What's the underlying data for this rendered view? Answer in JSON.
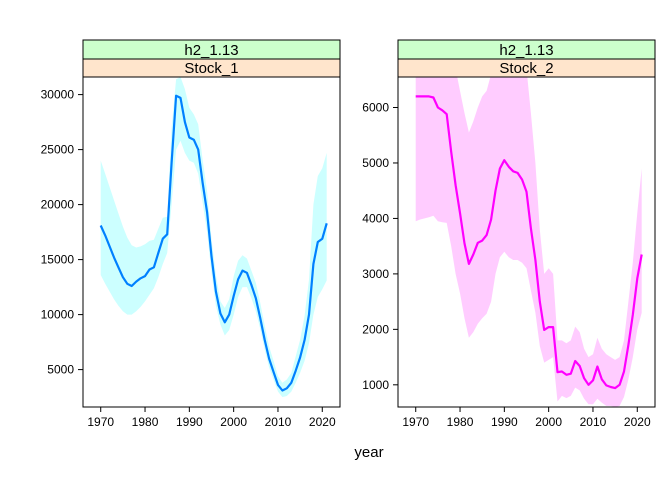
{
  "xlabel": "year",
  "colors": {
    "strip_top": "#ccffcc",
    "strip_bottom": "#ffe5cc",
    "stock1_line": "#0080ff",
    "stock1_band": "#ccffff",
    "stock2_line": "#ff00ff",
    "stock2_band": "#ffccff"
  },
  "chart_data": [
    {
      "type": "area",
      "strip_top": "h2_1.13",
      "strip_bottom": "Stock_1",
      "xlim": [
        1966,
        2024
      ],
      "ylim": [
        1600,
        31600
      ],
      "x_ticks": [
        1970,
        1980,
        1990,
        2000,
        2010,
        2020
      ],
      "y_ticks": [
        5000,
        10000,
        15000,
        20000,
        25000,
        30000
      ],
      "x": [
        1970,
        1971,
        1972,
        1973,
        1974,
        1975,
        1976,
        1977,
        1978,
        1979,
        1980,
        1981,
        1982,
        1983,
        1984,
        1985,
        1986,
        1987,
        1988,
        1989,
        1990,
        1991,
        1992,
        1993,
        1994,
        1995,
        1996,
        1997,
        1998,
        1999,
        2000,
        2001,
        2002,
        2003,
        2004,
        2005,
        2006,
        2007,
        2008,
        2009,
        2010,
        2011,
        2012,
        2013,
        2014,
        2015,
        2016,
        2017,
        2018,
        2019,
        2020,
        2021
      ],
      "series": [
        {
          "name": "estimate",
          "values": [
            18100,
            17200,
            16200,
            15200,
            14300,
            13400,
            12800,
            12600,
            13000,
            13300,
            13500,
            14100,
            14300,
            15600,
            16900,
            17300,
            23800,
            29900,
            29700,
            27500,
            26100,
            25900,
            25000,
            22000,
            19300,
            15300,
            12100,
            10100,
            9300,
            10000,
            11700,
            13200,
            14000,
            13800,
            12700,
            11500,
            9700,
            7700,
            6000,
            4800,
            3600,
            3100,
            3300,
            3800,
            4900,
            6100,
            7700,
            10000,
            14600,
            16600,
            16900,
            18300
          ]
        },
        {
          "name": "lower",
          "values": [
            13600,
            12800,
            12100,
            11400,
            10800,
            10300,
            10000,
            10000,
            10300,
            10700,
            11200,
            11800,
            12400,
            13400,
            14600,
            15600,
            20000,
            25000,
            25800,
            24700,
            24000,
            23800,
            22800,
            20200,
            17500,
            13800,
            10800,
            9100,
            8100,
            8600,
            10000,
            11600,
            12500,
            12500,
            11500,
            10300,
            8700,
            6800,
            5200,
            4100,
            3000,
            2500,
            2600,
            3000,
            3800,
            4700,
            5800,
            7400,
            10000,
            11600,
            12300,
            13100
          ]
        },
        {
          "name": "upper",
          "values": [
            24000,
            22800,
            21600,
            20400,
            19200,
            18000,
            17000,
            16300,
            16100,
            16200,
            16400,
            16700,
            16800,
            17800,
            18800,
            18900,
            27000,
            31400,
            31600,
            30500,
            28800,
            28200,
            27300,
            24100,
            21200,
            16900,
            13600,
            11200,
            10600,
            11400,
            13500,
            14900,
            15400,
            15100,
            14000,
            12900,
            11100,
            9000,
            7100,
            5800,
            4400,
            3800,
            4100,
            4700,
            6200,
            7700,
            9900,
            13200,
            20000,
            22600,
            23300,
            24700
          ]
        }
      ]
    },
    {
      "type": "area",
      "strip_top": "h2_1.13",
      "strip_bottom": "Stock_2",
      "xlim": [
        1966,
        2024
      ],
      "ylim": [
        600,
        6550
      ],
      "x_ticks": [
        1970,
        1980,
        1990,
        2000,
        2010,
        2020
      ],
      "y_ticks": [
        1000,
        2000,
        3000,
        4000,
        5000,
        6000
      ],
      "x": [
        1970,
        1971,
        1972,
        1973,
        1974,
        1975,
        1976,
        1977,
        1978,
        1979,
        1980,
        1981,
        1982,
        1983,
        1984,
        1985,
        1986,
        1987,
        1988,
        1989,
        1990,
        1991,
        1992,
        1993,
        1994,
        1995,
        1996,
        1997,
        1998,
        1999,
        2000,
        2001,
        2002,
        2003,
        2004,
        2005,
        2006,
        2007,
        2008,
        2009,
        2010,
        2011,
        2012,
        2013,
        2014,
        2015,
        2016,
        2017,
        2018,
        2019,
        2020,
        2021
      ],
      "series": [
        {
          "name": "estimate",
          "values": [
            6200,
            6200,
            6200,
            6200,
            6180,
            6000,
            5950,
            5880,
            5200,
            4600,
            4100,
            3550,
            3180,
            3350,
            3560,
            3600,
            3700,
            3980,
            4500,
            4900,
            5050,
            4930,
            4850,
            4820,
            4700,
            4480,
            3820,
            3250,
            2500,
            1990,
            2040,
            2040,
            1230,
            1240,
            1180,
            1200,
            1430,
            1340,
            1120,
            1000,
            1080,
            1330,
            1100,
            990,
            960,
            940,
            1000,
            1240,
            1720,
            2260,
            2920,
            3350
          ]
        },
        {
          "name": "lower",
          "values": [
            3950,
            3980,
            4000,
            4020,
            4050,
            3950,
            3930,
            3920,
            3500,
            3000,
            2650,
            2200,
            1850,
            1950,
            2100,
            2200,
            2280,
            2500,
            3000,
            3300,
            3400,
            3300,
            3250,
            3250,
            3200,
            3100,
            2700,
            2300,
            1700,
            1400,
            1450,
            1500,
            700,
            800,
            760,
            800,
            950,
            900,
            750,
            650,
            650,
            750,
            680,
            620,
            620,
            600,
            620,
            780,
            1100,
            1500,
            2000,
            2300
          ]
        },
        {
          "name": "upper",
          "values": [
            7000,
            7000,
            7000,
            7000,
            7000,
            7000,
            7000,
            7000,
            7000,
            6700,
            6300,
            5900,
            5550,
            5750,
            6000,
            6200,
            6300,
            6600,
            6900,
            7000,
            7000,
            7000,
            7000,
            7000,
            6900,
            6700,
            5900,
            5000,
            3800,
            3000,
            3100,
            3000,
            1800,
            1800,
            1750,
            1800,
            2050,
            1950,
            1650,
            1500,
            1550,
            1850,
            1650,
            1550,
            1500,
            1450,
            1500,
            1800,
            2500,
            3200,
            4100,
            4900
          ]
        }
      ]
    }
  ]
}
